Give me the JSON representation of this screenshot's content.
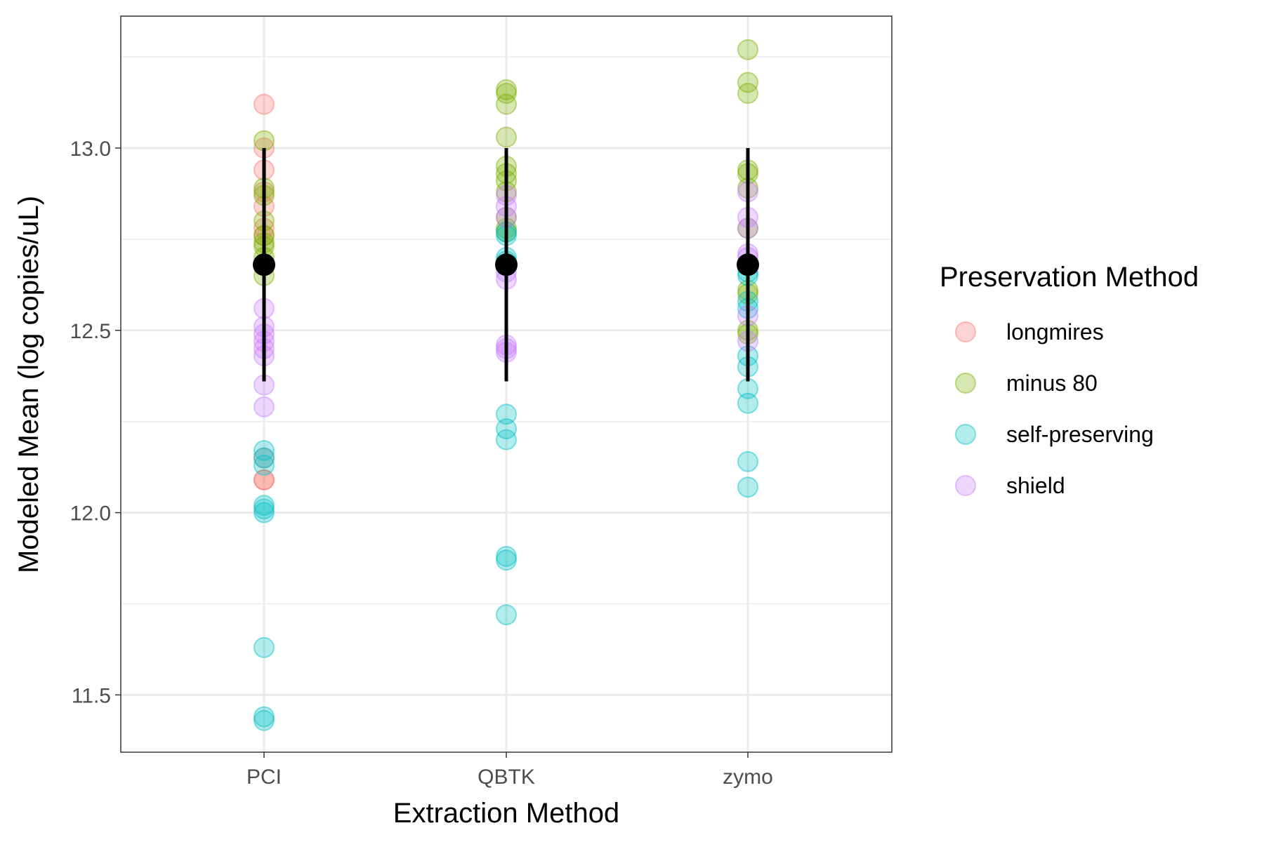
{
  "chart_data": {
    "type": "scatter",
    "xlabel": "Extraction Method",
    "ylabel": "Modeled Mean (log copies/uL)",
    "categories": [
      "PCI",
      "QBTK",
      "zymo"
    ],
    "ylim": [
      11.335,
      13.36
    ],
    "yticks": [
      11.5,
      12.0,
      12.5,
      13.0
    ],
    "ytick_labels": [
      "11.5",
      "12.0",
      "12.5",
      "13.0"
    ],
    "grid": true,
    "legend": {
      "title": "Preservation Method",
      "placement": "right"
    },
    "series": [
      {
        "name": "longmires",
        "color": "#F8766D",
        "points": {
          "PCI": [
            13.12,
            13.0,
            12.94,
            12.88,
            12.84,
            12.78,
            12.76,
            12.15,
            12.09,
            12.09
          ],
          "QBTK": [],
          "zymo": []
        }
      },
      {
        "name": "minus 80",
        "color": "#7CAE00",
        "points": {
          "PCI": [
            13.02,
            12.89,
            12.87,
            12.8,
            12.76,
            12.74,
            12.73,
            12.7,
            12.65
          ],
          "QBTK": [
            13.16,
            13.15,
            13.12,
            13.03,
            12.95,
            12.93,
            12.91,
            12.88,
            12.81,
            12.78,
            12.77
          ],
          "zymo": [
            13.27,
            13.18,
            13.15,
            12.94,
            12.93,
            12.89,
            12.78,
            12.61,
            12.6,
            12.5,
            12.49
          ]
        }
      },
      {
        "name": "self-preserving",
        "color": "#00BFC4",
        "points": {
          "PCI": [
            12.17,
            12.15,
            12.13,
            12.02,
            12.01,
            12.0,
            11.63,
            11.44,
            11.43
          ],
          "QBTK": [
            12.77,
            12.76,
            12.7,
            12.69,
            12.27,
            12.23,
            12.2,
            11.88,
            11.87,
            11.72
          ],
          "zymo": [
            12.66,
            12.65,
            12.58,
            12.56,
            12.43,
            12.4,
            12.34,
            12.3,
            12.14,
            12.07
          ]
        }
      },
      {
        "name": "shield",
        "color": "#C77CFF",
        "points": {
          "PCI": [
            12.56,
            12.51,
            12.49,
            12.47,
            12.45,
            12.43,
            12.35,
            12.29
          ],
          "QBTK": [
            12.87,
            12.84,
            12.81,
            12.68,
            12.66,
            12.64,
            12.46,
            12.45,
            12.44
          ],
          "zymo": [
            12.88,
            12.81,
            12.78,
            12.71,
            12.7,
            12.68,
            12.54,
            12.47
          ]
        }
      }
    ],
    "summary": {
      "color": "#000000",
      "points": [
        {
          "x": "PCI",
          "mean": 12.68,
          "lower": 12.36,
          "upper": 13.0
        },
        {
          "x": "QBTK",
          "mean": 12.68,
          "lower": 12.36,
          "upper": 13.0
        },
        {
          "x": "zymo",
          "mean": 12.68,
          "lower": 12.36,
          "upper": 13.0
        }
      ]
    }
  }
}
